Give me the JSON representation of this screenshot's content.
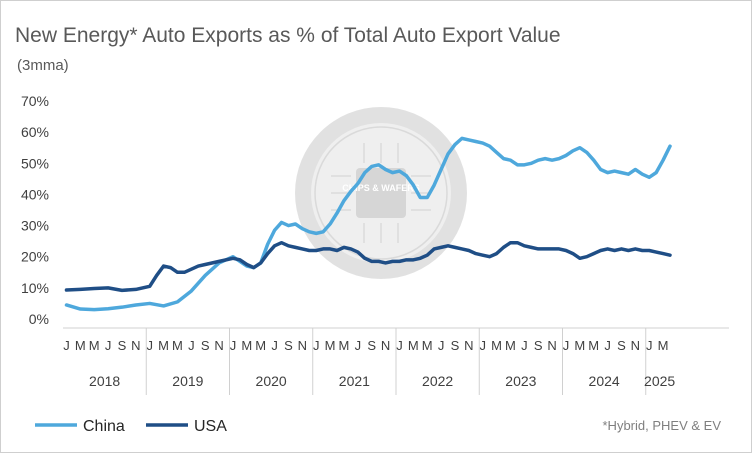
{
  "chart_data": {
    "type": "line",
    "title": "New Energy* Auto Exports as % of Total Auto Export Value",
    "subtitle": "(3mma)",
    "footnote": "*Hybrid, PHEV & EV",
    "ylim": [
      0,
      70
    ],
    "yticks": [
      "0%",
      "10%",
      "20%",
      "30%",
      "40%",
      "50%",
      "60%",
      "70%"
    ],
    "month_labels": [
      "J",
      "M",
      "M",
      "J",
      "S",
      "N"
    ],
    "years": [
      "2018",
      "2019",
      "2020",
      "2021",
      "2022",
      "2023",
      "2024",
      "2025"
    ],
    "grid": false,
    "legend_position": "bottom-left",
    "watermark": "CHIPS & WAFERS",
    "series": [
      {
        "name": "China",
        "color": "#4ea8dc",
        "points": [
          [
            "2018-01",
            4.5
          ],
          [
            "2018-03",
            3.2
          ],
          [
            "2018-05",
            3.0
          ],
          [
            "2018-07",
            3.3
          ],
          [
            "2018-09",
            3.8
          ],
          [
            "2018-11",
            4.5
          ],
          [
            "2019-01",
            5.0
          ],
          [
            "2019-03",
            4.2
          ],
          [
            "2019-05",
            5.5
          ],
          [
            "2019-07",
            9.0
          ],
          [
            "2019-09",
            14.0
          ],
          [
            "2019-11",
            18.0
          ],
          [
            "2020-01",
            20.0
          ],
          [
            "2020-03",
            17.0
          ],
          [
            "2020-04",
            16.5
          ],
          [
            "2020-05",
            18.0
          ],
          [
            "2020-06",
            24.0
          ],
          [
            "2020-07",
            28.5
          ],
          [
            "2020-08",
            31.0
          ],
          [
            "2020-09",
            30.0
          ],
          [
            "2020-10",
            30.5
          ],
          [
            "2020-11",
            29.0
          ],
          [
            "2020-12",
            28.0
          ],
          [
            "2021-01",
            27.5
          ],
          [
            "2021-02",
            28.0
          ],
          [
            "2021-03",
            30.5
          ],
          [
            "2021-04",
            34.0
          ],
          [
            "2021-05",
            38.0
          ],
          [
            "2021-06",
            41.0
          ],
          [
            "2021-07",
            43.5
          ],
          [
            "2021-08",
            47.0
          ],
          [
            "2021-09",
            49.0
          ],
          [
            "2021-10",
            49.5
          ],
          [
            "2021-11",
            48.0
          ],
          [
            "2021-12",
            47.0
          ],
          [
            "2022-01",
            47.5
          ],
          [
            "2022-02",
            46.0
          ],
          [
            "2022-03",
            43.0
          ],
          [
            "2022-04",
            39.0
          ],
          [
            "2022-05",
            39.0
          ],
          [
            "2022-06",
            43.0
          ],
          [
            "2022-07",
            48.0
          ],
          [
            "2022-08",
            53.0
          ],
          [
            "2022-09",
            56.0
          ],
          [
            "2022-10",
            58.0
          ],
          [
            "2022-11",
            57.5
          ],
          [
            "2022-12",
            57.0
          ],
          [
            "2023-01",
            56.5
          ],
          [
            "2023-02",
            55.5
          ],
          [
            "2023-03",
            53.5
          ],
          [
            "2023-04",
            51.5
          ],
          [
            "2023-05",
            51.0
          ],
          [
            "2023-06",
            49.5
          ],
          [
            "2023-07",
            49.5
          ],
          [
            "2023-08",
            50.0
          ],
          [
            "2023-09",
            51.0
          ],
          [
            "2023-10",
            51.5
          ],
          [
            "2023-11",
            51.0
          ],
          [
            "2023-12",
            51.5
          ],
          [
            "2024-01",
            52.5
          ],
          [
            "2024-02",
            54.0
          ],
          [
            "2024-03",
            55.0
          ],
          [
            "2024-04",
            53.5
          ],
          [
            "2024-05",
            51.0
          ],
          [
            "2024-06",
            48.0
          ],
          [
            "2024-07",
            47.0
          ],
          [
            "2024-08",
            47.5
          ],
          [
            "2024-09",
            47.0
          ],
          [
            "2024-10",
            46.5
          ],
          [
            "2024-11",
            48.0
          ],
          [
            "2024-12",
            46.5
          ],
          [
            "2025-01",
            45.5
          ],
          [
            "2025-02",
            47.0
          ],
          [
            "2025-03",
            51.0
          ],
          [
            "2025-04",
            55.5
          ]
        ]
      },
      {
        "name": "USA",
        "color": "#1f4e86",
        "points": [
          [
            "2018-01",
            9.3
          ],
          [
            "2018-03",
            9.5
          ],
          [
            "2018-05",
            9.8
          ],
          [
            "2018-07",
            10.0
          ],
          [
            "2018-09",
            9.2
          ],
          [
            "2018-11",
            9.5
          ],
          [
            "2019-01",
            10.5
          ],
          [
            "2019-02",
            14.0
          ],
          [
            "2019-03",
            17.0
          ],
          [
            "2019-04",
            16.5
          ],
          [
            "2019-05",
            15.0
          ],
          [
            "2019-06",
            15.0
          ],
          [
            "2019-07",
            16.0
          ],
          [
            "2019-08",
            17.0
          ],
          [
            "2019-09",
            17.5
          ],
          [
            "2019-11",
            18.5
          ],
          [
            "2020-01",
            19.5
          ],
          [
            "2020-02",
            19.0
          ],
          [
            "2020-03",
            17.5
          ],
          [
            "2020-04",
            16.5
          ],
          [
            "2020-05",
            18.0
          ],
          [
            "2020-06",
            21.0
          ],
          [
            "2020-07",
            23.5
          ],
          [
            "2020-08",
            24.5
          ],
          [
            "2020-09",
            23.5
          ],
          [
            "2020-10",
            23.0
          ],
          [
            "2020-11",
            22.5
          ],
          [
            "2020-12",
            22.0
          ],
          [
            "2021-01",
            22.0
          ],
          [
            "2021-02",
            22.5
          ],
          [
            "2021-03",
            22.5
          ],
          [
            "2021-04",
            22.0
          ],
          [
            "2021-05",
            23.0
          ],
          [
            "2021-06",
            22.5
          ],
          [
            "2021-07",
            21.5
          ],
          [
            "2021-08",
            19.5
          ],
          [
            "2021-09",
            18.5
          ],
          [
            "2021-10",
            18.5
          ],
          [
            "2021-11",
            18.0
          ],
          [
            "2021-12",
            18.5
          ],
          [
            "2022-01",
            18.5
          ],
          [
            "2022-02",
            19.0
          ],
          [
            "2022-03",
            19.0
          ],
          [
            "2022-04",
            19.5
          ],
          [
            "2022-05",
            20.5
          ],
          [
            "2022-06",
            22.5
          ],
          [
            "2022-07",
            23.0
          ],
          [
            "2022-08",
            23.5
          ],
          [
            "2022-09",
            23.0
          ],
          [
            "2022-10",
            22.5
          ],
          [
            "2022-11",
            22.0
          ],
          [
            "2022-12",
            21.0
          ],
          [
            "2023-01",
            20.5
          ],
          [
            "2023-02",
            20.0
          ],
          [
            "2023-03",
            21.0
          ],
          [
            "2023-04",
            23.0
          ],
          [
            "2023-05",
            24.5
          ],
          [
            "2023-06",
            24.5
          ],
          [
            "2023-07",
            23.5
          ],
          [
            "2023-08",
            23.0
          ],
          [
            "2023-09",
            22.5
          ],
          [
            "2023-10",
            22.5
          ],
          [
            "2023-11",
            22.5
          ],
          [
            "2023-12",
            22.5
          ],
          [
            "2024-01",
            22.0
          ],
          [
            "2024-02",
            21.0
          ],
          [
            "2024-03",
            19.5
          ],
          [
            "2024-04",
            20.0
          ],
          [
            "2024-05",
            21.0
          ],
          [
            "2024-06",
            22.0
          ],
          [
            "2024-07",
            22.5
          ],
          [
            "2024-08",
            22.0
          ],
          [
            "2024-09",
            22.5
          ],
          [
            "2024-10",
            22.0
          ],
          [
            "2024-11",
            22.5
          ],
          [
            "2024-12",
            22.0
          ],
          [
            "2025-01",
            22.0
          ],
          [
            "2025-02",
            21.5
          ],
          [
            "2025-03",
            21.0
          ],
          [
            "2025-04",
            20.5
          ]
        ]
      }
    ]
  }
}
